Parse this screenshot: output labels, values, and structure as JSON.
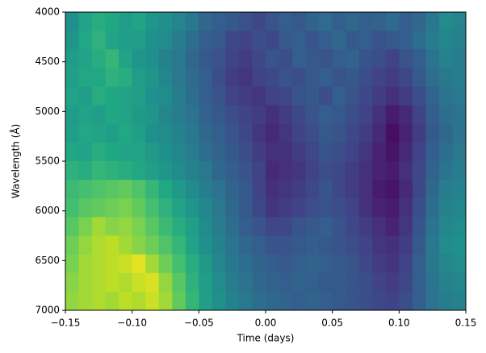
{
  "chart_data": {
    "type": "heatmap",
    "colormap": "viridis",
    "zlim": [
      0,
      1
    ],
    "xlabel": "Time (days)",
    "ylabel": "Wavelength (Å)",
    "xlim": [
      -0.15,
      0.15
    ],
    "ylim": [
      7000,
      4000
    ],
    "xticks": [
      {
        "value": -0.15,
        "label": "−0.15"
      },
      {
        "value": -0.1,
        "label": "−0.10"
      },
      {
        "value": -0.05,
        "label": "−0.05"
      },
      {
        "value": 0,
        "label": "0.00"
      },
      {
        "value": 0.05,
        "label": "0.05"
      },
      {
        "value": 0.1,
        "label": "0.10"
      },
      {
        "value": 0.15,
        "label": "0.15"
      }
    ],
    "yticks": [
      4000,
      4500,
      5000,
      5500,
      6000,
      6500,
      7000
    ],
    "z": [
      [
        0.5,
        0.58,
        0.62,
        0.6,
        0.55,
        0.58,
        0.52,
        0.5,
        0.45,
        0.4,
        0.33,
        0.3,
        0.28,
        0.25,
        0.22,
        0.26,
        0.3,
        0.28,
        0.32,
        0.35,
        0.3,
        0.34,
        0.3,
        0.32,
        0.35,
        0.3,
        0.33,
        0.4,
        0.48,
        0.45
      ],
      [
        0.52,
        0.6,
        0.64,
        0.58,
        0.56,
        0.55,
        0.5,
        0.48,
        0.42,
        0.36,
        0.3,
        0.28,
        0.22,
        0.2,
        0.24,
        0.22,
        0.28,
        0.3,
        0.26,
        0.3,
        0.34,
        0.28,
        0.3,
        0.26,
        0.28,
        0.3,
        0.36,
        0.42,
        0.46,
        0.44
      ],
      [
        0.55,
        0.58,
        0.62,
        0.66,
        0.58,
        0.52,
        0.5,
        0.44,
        0.4,
        0.34,
        0.28,
        0.25,
        0.2,
        0.18,
        0.22,
        0.26,
        0.24,
        0.3,
        0.28,
        0.26,
        0.3,
        0.32,
        0.26,
        0.24,
        0.2,
        0.26,
        0.3,
        0.38,
        0.44,
        0.42
      ],
      [
        0.56,
        0.6,
        0.6,
        0.64,
        0.62,
        0.55,
        0.52,
        0.46,
        0.4,
        0.35,
        0.3,
        0.24,
        0.18,
        0.16,
        0.2,
        0.22,
        0.26,
        0.24,
        0.28,
        0.3,
        0.26,
        0.28,
        0.24,
        0.2,
        0.18,
        0.22,
        0.28,
        0.36,
        0.4,
        0.42
      ],
      [
        0.58,
        0.56,
        0.62,
        0.6,
        0.58,
        0.56,
        0.5,
        0.48,
        0.42,
        0.36,
        0.3,
        0.26,
        0.2,
        0.18,
        0.16,
        0.2,
        0.22,
        0.26,
        0.28,
        0.24,
        0.3,
        0.26,
        0.22,
        0.18,
        0.14,
        0.18,
        0.24,
        0.32,
        0.38,
        0.4
      ],
      [
        0.55,
        0.58,
        0.56,
        0.6,
        0.58,
        0.54,
        0.52,
        0.46,
        0.42,
        0.38,
        0.32,
        0.28,
        0.24,
        0.2,
        0.18,
        0.14,
        0.18,
        0.22,
        0.26,
        0.3,
        0.28,
        0.24,
        0.2,
        0.14,
        0.08,
        0.12,
        0.2,
        0.3,
        0.36,
        0.38
      ],
      [
        0.56,
        0.6,
        0.58,
        0.56,
        0.6,
        0.56,
        0.5,
        0.48,
        0.44,
        0.4,
        0.34,
        0.3,
        0.26,
        0.22,
        0.16,
        0.12,
        0.16,
        0.2,
        0.24,
        0.28,
        0.26,
        0.22,
        0.18,
        0.12,
        0.04,
        0.1,
        0.18,
        0.28,
        0.34,
        0.38
      ],
      [
        0.6,
        0.58,
        0.62,
        0.6,
        0.58,
        0.58,
        0.54,
        0.5,
        0.46,
        0.42,
        0.36,
        0.32,
        0.28,
        0.24,
        0.18,
        0.14,
        0.14,
        0.18,
        0.22,
        0.26,
        0.24,
        0.2,
        0.16,
        0.1,
        0.06,
        0.12,
        0.2,
        0.3,
        0.36,
        0.4
      ],
      [
        0.64,
        0.62,
        0.66,
        0.64,
        0.62,
        0.6,
        0.56,
        0.52,
        0.48,
        0.44,
        0.4,
        0.34,
        0.3,
        0.26,
        0.2,
        0.12,
        0.14,
        0.16,
        0.2,
        0.24,
        0.22,
        0.18,
        0.14,
        0.1,
        0.08,
        0.14,
        0.22,
        0.32,
        0.38,
        0.42
      ],
      [
        0.68,
        0.7,
        0.72,
        0.74,
        0.76,
        0.72,
        0.66,
        0.6,
        0.54,
        0.48,
        0.42,
        0.38,
        0.32,
        0.28,
        0.2,
        0.14,
        0.16,
        0.18,
        0.22,
        0.26,
        0.22,
        0.18,
        0.14,
        0.08,
        0.06,
        0.12,
        0.22,
        0.34,
        0.42,
        0.44
      ],
      [
        0.7,
        0.74,
        0.76,
        0.78,
        0.8,
        0.76,
        0.7,
        0.64,
        0.58,
        0.52,
        0.46,
        0.4,
        0.34,
        0.28,
        0.22,
        0.16,
        0.18,
        0.2,
        0.24,
        0.26,
        0.24,
        0.2,
        0.14,
        0.1,
        0.08,
        0.14,
        0.24,
        0.36,
        0.44,
        0.46
      ],
      [
        0.74,
        0.8,
        0.86,
        0.82,
        0.84,
        0.8,
        0.74,
        0.68,
        0.62,
        0.56,
        0.48,
        0.42,
        0.36,
        0.3,
        0.26,
        0.22,
        0.22,
        0.26,
        0.28,
        0.3,
        0.26,
        0.22,
        0.18,
        0.14,
        0.1,
        0.16,
        0.26,
        0.38,
        0.46,
        0.48
      ],
      [
        0.78,
        0.84,
        0.88,
        0.9,
        0.86,
        0.82,
        0.78,
        0.72,
        0.66,
        0.58,
        0.5,
        0.44,
        0.38,
        0.34,
        0.3,
        0.26,
        0.26,
        0.28,
        0.3,
        0.28,
        0.26,
        0.24,
        0.2,
        0.16,
        0.14,
        0.18,
        0.28,
        0.4,
        0.48,
        0.5
      ],
      [
        0.8,
        0.86,
        0.88,
        0.9,
        0.92,
        0.96,
        0.86,
        0.78,
        0.7,
        0.62,
        0.54,
        0.46,
        0.4,
        0.36,
        0.32,
        0.3,
        0.28,
        0.3,
        0.32,
        0.3,
        0.28,
        0.26,
        0.22,
        0.18,
        0.16,
        0.2,
        0.3,
        0.4,
        0.46,
        0.48
      ],
      [
        0.82,
        0.86,
        0.88,
        0.9,
        0.88,
        0.92,
        0.94,
        0.84,
        0.74,
        0.64,
        0.56,
        0.48,
        0.42,
        0.38,
        0.34,
        0.32,
        0.3,
        0.32,
        0.3,
        0.28,
        0.28,
        0.26,
        0.24,
        0.2,
        0.18,
        0.22,
        0.3,
        0.38,
        0.44,
        0.46
      ],
      [
        0.84,
        0.86,
        0.88,
        0.86,
        0.9,
        0.88,
        0.92,
        0.86,
        0.76,
        0.66,
        0.56,
        0.5,
        0.44,
        0.4,
        0.36,
        0.34,
        0.32,
        0.3,
        0.32,
        0.3,
        0.28,
        0.26,
        0.24,
        0.22,
        0.2,
        0.24,
        0.3,
        0.38,
        0.42,
        0.44
      ]
    ]
  }
}
